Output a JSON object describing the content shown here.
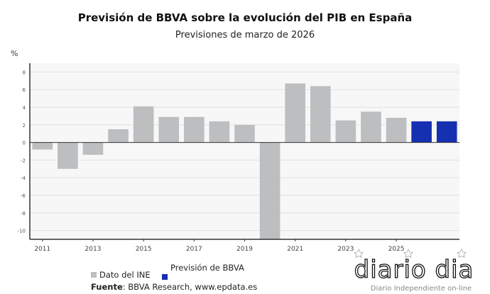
{
  "chart_data": {
    "type": "bar",
    "title": "Previsión de BBVA sobre la evolución del PIB en España",
    "subtitle": "Previsiones de marzo de 2026",
    "ylabel": "%",
    "ylim": [
      -11,
      9
    ],
    "yticks": [
      -10,
      -8,
      -6,
      -4,
      -2,
      0,
      2,
      4,
      6,
      8
    ],
    "grid": true,
    "categories": [
      "2011",
      "2012",
      "2013",
      "2014",
      "2015",
      "2016",
      "2017",
      "2018",
      "2019",
      "2020",
      "2021",
      "2022",
      "2023",
      "2024",
      "2025",
      "2026",
      "2027"
    ],
    "xtick_labels": [
      "2011",
      "2013",
      "2015",
      "2017",
      "2019",
      "2021",
      "2023",
      "2025"
    ],
    "values": [
      -0.8,
      -3.0,
      -1.4,
      1.5,
      4.1,
      2.9,
      2.9,
      2.4,
      2.0,
      -11.2,
      6.7,
      6.4,
      2.5,
      3.5,
      2.8,
      2.4,
      2.4
    ],
    "series_type": [
      "INE",
      "INE",
      "INE",
      "INE",
      "INE",
      "INE",
      "INE",
      "INE",
      "INE",
      "INE",
      "INE",
      "INE",
      "INE",
      "INE",
      "INE",
      "BBVA",
      "BBVA"
    ],
    "legend": [
      {
        "name": "Dato del INE",
        "color": "#bcbec0"
      },
      {
        "name": "Previsión de BBVA",
        "color": "#1530b0"
      }
    ],
    "legend_position": "bottom"
  },
  "source": {
    "label": "Fuente",
    "text": ": BBVA Research, www.epdata.es"
  },
  "watermark": {
    "brand": "diario dia",
    "tagline": "Diario Independiente on-line"
  }
}
